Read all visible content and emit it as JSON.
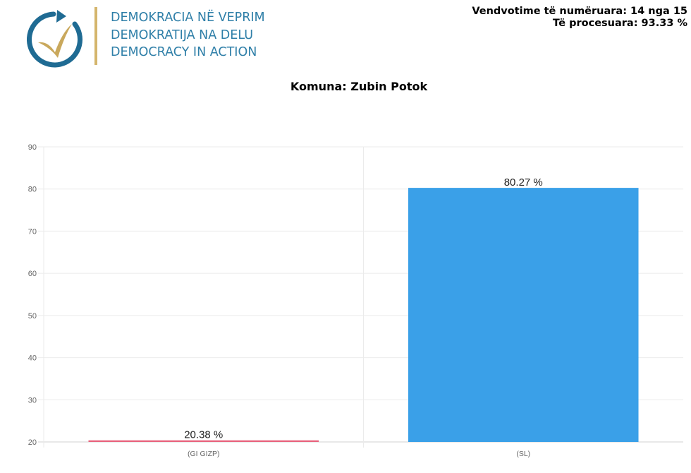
{
  "header": {
    "logo": {
      "icon": "circular-arrow-checkmark-icon",
      "colors": {
        "arrow": "#1f6b93",
        "check": "#c9a85c",
        "divider": "#d4b56c",
        "text": "#2f7fa8"
      },
      "lines": [
        "DEMOKRACIA NË VEPRIM",
        "DEMOKRATIJA NA DELU",
        "DEMOCRACY IN ACTION"
      ]
    },
    "stats": {
      "counted": "Vendvotime të numëruara: 14 nga 15",
      "processed": "Të procesuara: 93.33 %"
    }
  },
  "chart_title": "Komuna: Zubin Potok",
  "chart_data": {
    "type": "bar",
    "title": "Komuna: Zubin Potok",
    "xlabel": "",
    "ylabel": "",
    "categories": [
      "(GI GIZP)",
      "(SL)"
    ],
    "values": [
      20.38,
      80.27
    ],
    "value_labels": [
      "20.38 %",
      "80.27 %"
    ],
    "colors": [
      "#e8647e",
      "#3aa0e8"
    ],
    "ylim": [
      20,
      90
    ],
    "yticks": [
      20,
      30,
      40,
      50,
      60,
      70,
      80,
      90
    ],
    "grid": true,
    "legend": "none"
  }
}
